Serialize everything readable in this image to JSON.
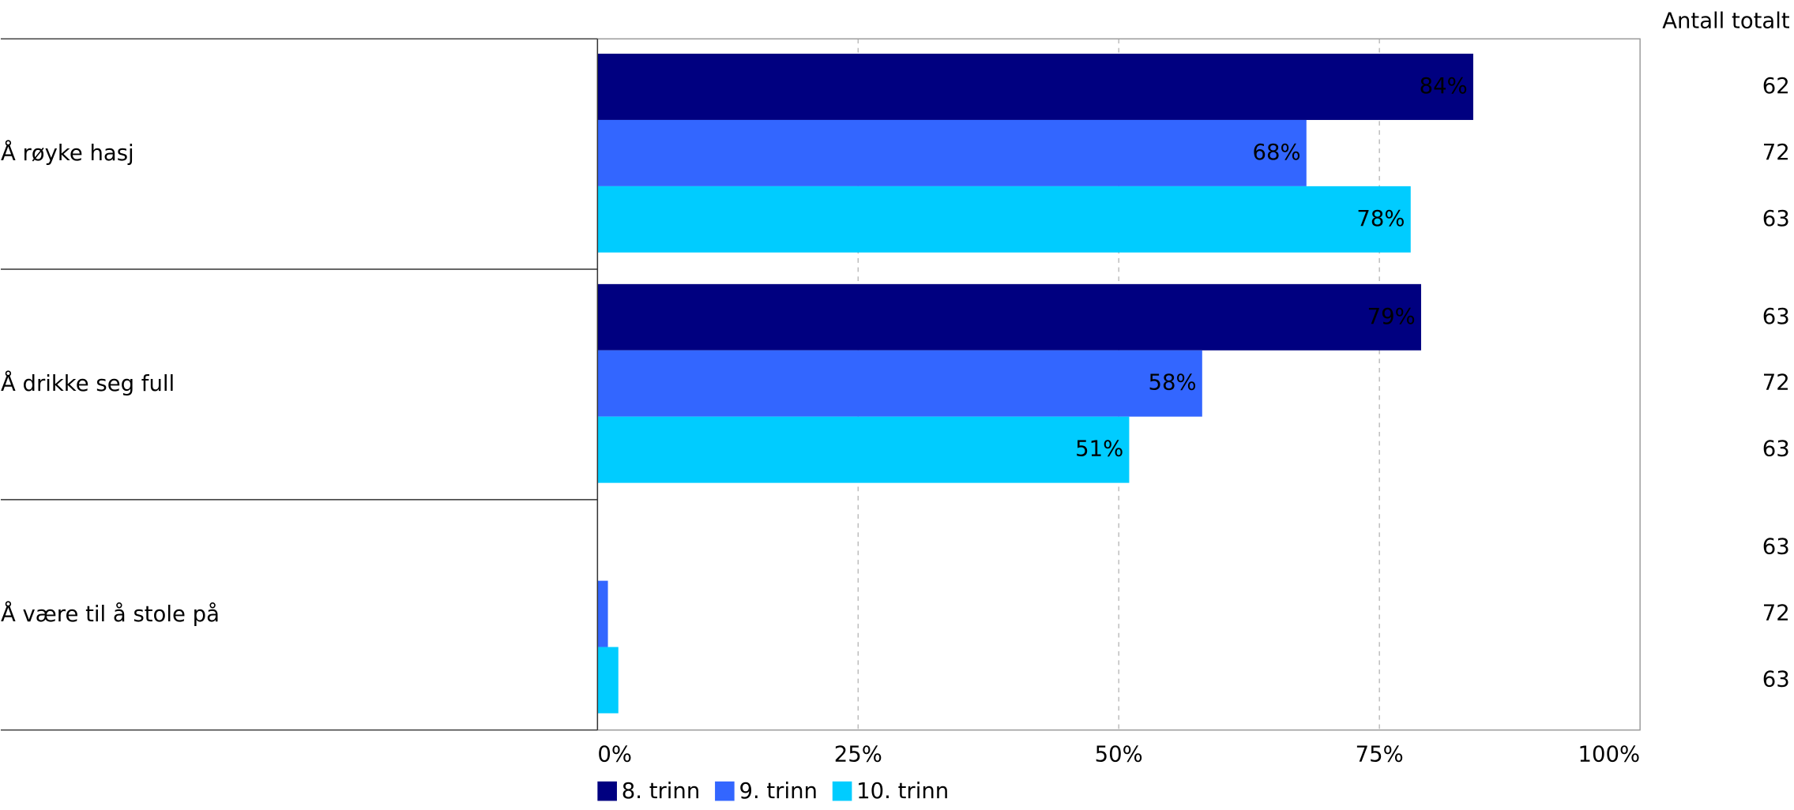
{
  "chart_data": {
    "type": "hbar",
    "categories": [
      "Å røyke hasj",
      "Å drikke seg full",
      "Å være til å stole på"
    ],
    "series": [
      {
        "name": "8. trinn",
        "color": "#000080",
        "values": [
          84,
          79,
          0
        ],
        "value_labels": [
          "84%",
          "79%",
          null
        ],
        "counts": [
          62,
          63,
          63
        ]
      },
      {
        "name": "9. trinn",
        "color": "#3366ff",
        "values": [
          68,
          58,
          1
        ],
        "value_labels": [
          "68%",
          "58%",
          null
        ],
        "counts": [
          72,
          72,
          72
        ]
      },
      {
        "name": "10. trinn",
        "color": "#00ccff",
        "values": [
          78,
          51,
          2
        ],
        "value_labels": [
          "78%",
          "51%",
          null
        ],
        "counts": [
          63,
          63,
          63
        ]
      }
    ],
    "counts_label": "Antall totalt",
    "xlim": [
      0,
      100
    ],
    "xticks": [
      {
        "value": 0,
        "label": "0%"
      },
      {
        "value": 25,
        "label": "25%"
      },
      {
        "value": 50,
        "label": "50%"
      },
      {
        "value": 75,
        "label": "75%"
      },
      {
        "value": 100,
        "label": "100%"
      }
    ],
    "grid": true,
    "legend": "bottom-left"
  }
}
